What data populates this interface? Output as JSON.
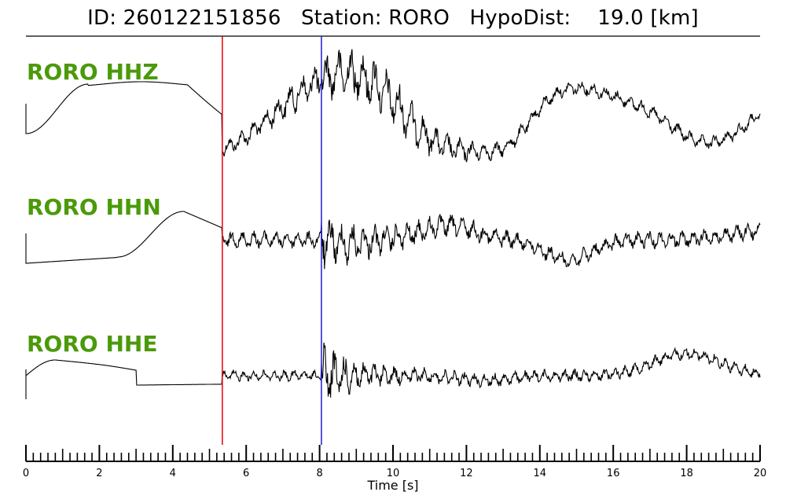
{
  "header": {
    "title": "ID: 260122151856   Station: RORO   HypoDist:    19.0 [km]"
  },
  "chart_data": {
    "type": "line",
    "title": "ID: 260122151856   Station: RORO   HypoDist:    19.0 [km]",
    "xlabel": "Time [s]",
    "ylabel": "",
    "xlim": [
      0,
      20
    ],
    "x_ticks_major": [
      0,
      2,
      4,
      6,
      8,
      10,
      12,
      14,
      16,
      18,
      20
    ],
    "x_tick_minor_step": 0.2,
    "grid": false,
    "series": [
      {
        "name": "RORO HHZ",
        "component": "HHZ"
      },
      {
        "name": "RORO HHN",
        "component": "HHN"
      },
      {
        "name": "RORO HHE",
        "component": "HHE"
      }
    ],
    "markers": [
      {
        "phase": "P",
        "time": 5.35,
        "color": "#e8000b"
      },
      {
        "phase": "S",
        "time": 8.05,
        "color": "#1a1ad8"
      }
    ]
  },
  "colors": {
    "label": "#4a9a0a",
    "trace": "#000000",
    "p_pick": "#e8000b",
    "s_pick": "#1a1ad8"
  }
}
